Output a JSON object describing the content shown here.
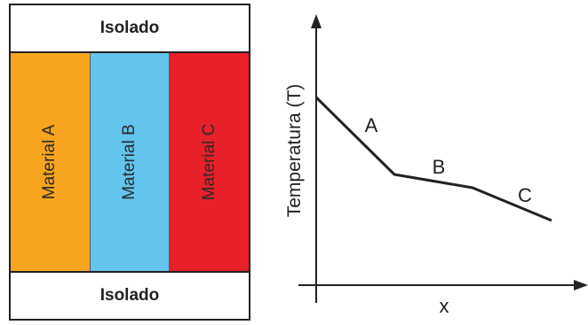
{
  "wall": {
    "top_label": "Isolado",
    "bottom_label": "Isolado",
    "materials": [
      {
        "label": "Material A",
        "color": "#f7a51e"
      },
      {
        "label": "Material B",
        "color": "#63c4ee"
      },
      {
        "label": "Material C",
        "color": "#e8202a"
      }
    ]
  },
  "graph": {
    "ylabel": "Temperatura (T)",
    "xlabel": "x",
    "segments": [
      {
        "label": "A"
      },
      {
        "label": "B"
      },
      {
        "label": "C"
      }
    ]
  }
}
